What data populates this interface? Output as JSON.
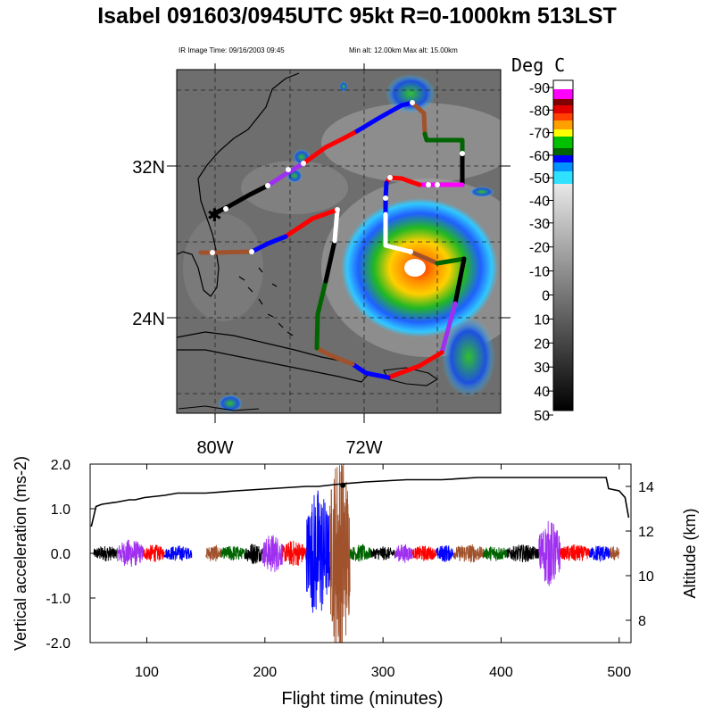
{
  "title": "Isabel 091603/0945UTC 95kt  R=0-1000km 513LST",
  "ir_image_time": "IR Image Time: 09/16/2003 09:45",
  "altitude_range": "Min alt: 12.00km  Max alt: 15.00km",
  "colorbar": {
    "title": "Deg C",
    "labels": [
      "-90",
      "-80",
      "-70",
      "-60",
      "-50",
      "-40",
      "-30",
      "-20",
      "-10",
      "0",
      "10",
      "20",
      "30",
      "40",
      "50"
    ]
  },
  "map": {
    "lat_labels": [
      "32N",
      "24N"
    ],
    "lon_labels": [
      "80W",
      "72W"
    ]
  },
  "chart_data": {
    "type": "line",
    "title": "Isabel 091603/0945UTC 95kt  R=0-1000km 513LST",
    "xlabel": "Flight time (minutes)",
    "ylabel": "Vertical acceleration (ms-2)",
    "y2label": "Altitude (km)",
    "xlim": [
      52,
      510
    ],
    "ylim": [
      -2.0,
      2.0
    ],
    "y2lim": [
      7,
      15
    ],
    "x_ticks": [
      "100",
      "200",
      "300",
      "400",
      "500"
    ],
    "y_ticks": [
      "2.0",
      "1.0",
      "0.0",
      "-1.0",
      "-2.0"
    ],
    "y2_ticks": [
      "14",
      "12",
      "10",
      "8"
    ],
    "series": [
      {
        "name": "Altitude (km)",
        "axis": "right",
        "x": [
          53,
          57,
          62,
          75,
          85,
          90,
          98,
          115,
          126,
          138,
          150,
          175,
          205,
          235,
          245,
          262,
          285,
          320,
          350,
          380,
          420,
          460,
          489,
          491,
          500,
          505,
          508
        ],
        "y": [
          12.2,
          13.1,
          13.2,
          13.3,
          13.4,
          13.4,
          13.5,
          13.6,
          13.7,
          13.7,
          13.7,
          13.8,
          13.9,
          14.0,
          14.0,
          14.1,
          14.2,
          14.3,
          14.3,
          14.4,
          14.4,
          14.4,
          14.4,
          13.9,
          13.8,
          13.5,
          12.6
        ]
      },
      {
        "name": "Vertical acceleration",
        "axis": "left",
        "segments": [
          {
            "color": "#000000",
            "x": [
              55,
              75
            ],
            "amp": 0.18
          },
          {
            "color": "#a030f0",
            "x": [
              75,
              97
            ],
            "amp": 0.32
          },
          {
            "color": "#ff0000",
            "x": [
              97,
              115
            ],
            "amp": 0.2
          },
          {
            "color": "#0000ff",
            "x": [
              115,
              138
            ],
            "amp": 0.18
          },
          {
            "color": "#a0522d",
            "x": [
              150,
              163
            ],
            "amp": 0.2
          },
          {
            "color": "#006400",
            "x": [
              163,
              183
            ],
            "amp": 0.18
          },
          {
            "color": "#000000",
            "x": [
              183,
              198
            ],
            "amp": 0.25
          },
          {
            "color": "#a030f0",
            "x": [
              198,
              215
            ],
            "amp": 0.45
          },
          {
            "color": "#ff0000",
            "x": [
              215,
              235
            ],
            "amp": 0.3
          },
          {
            "color": "#0000ff",
            "x": [
              235,
              255
            ],
            "amp": 1.5
          },
          {
            "color": "#a0522d",
            "x": [
              255,
              272
            ],
            "amp": 2.4
          },
          {
            "color": "#006400",
            "x": [
              272,
              290
            ],
            "amp": 0.2
          },
          {
            "color": "#000000",
            "x": [
              290,
              310
            ],
            "amp": 0.16
          },
          {
            "color": "#a030f0",
            "x": [
              310,
              325
            ],
            "amp": 0.22
          },
          {
            "color": "#ff0000",
            "x": [
              325,
              345
            ],
            "amp": 0.18
          },
          {
            "color": "#0000ff",
            "x": [
              345,
              360
            ],
            "amp": 0.2
          },
          {
            "color": "#a0522d",
            "x": [
              360,
              385
            ],
            "amp": 0.22
          },
          {
            "color": "#006400",
            "x": [
              385,
              405
            ],
            "amp": 0.18
          },
          {
            "color": "#000000",
            "x": [
              405,
              432
            ],
            "amp": 0.2
          },
          {
            "color": "#a030f0",
            "x": [
              432,
              450
            ],
            "amp": 0.75
          },
          {
            "color": "#ff0000",
            "x": [
              450,
              475
            ],
            "amp": 0.2
          },
          {
            "color": "#0000ff",
            "x": [
              475,
              492
            ],
            "amp": 0.2
          },
          {
            "color": "#a0522d",
            "x": [
              492,
              500
            ],
            "amp": 0.18
          }
        ]
      }
    ]
  }
}
